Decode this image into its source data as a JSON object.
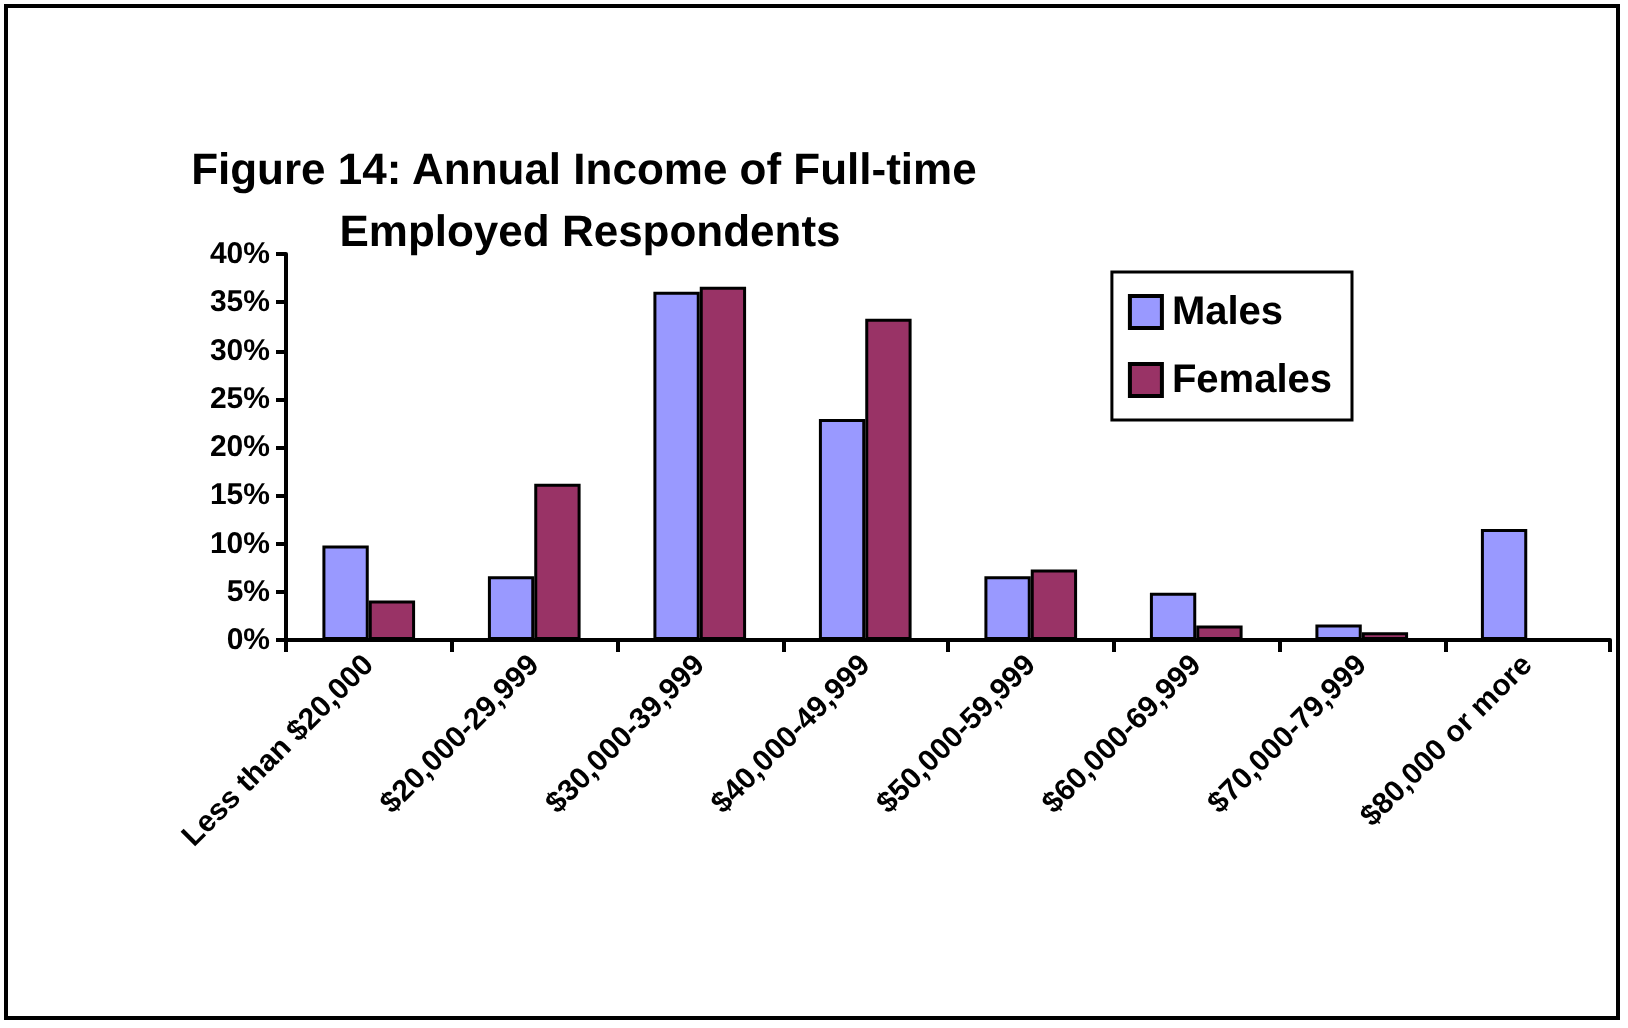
{
  "chart_data": {
    "type": "bar",
    "title": "Figure 14: Annual Income of Full-time Employed Respondents",
    "categories": [
      "Less than $20,000",
      "$20,000-29,999",
      "$30,000-39,999",
      "$40,000-49,999",
      "$50,000-59,999",
      "$60,000-69,999",
      "$70,000-79,999",
      "$80,000 or more"
    ],
    "series": [
      {
        "name": "Males",
        "color": "#9999ff",
        "values": [
          9.8,
          6.6,
          36.1,
          22.9,
          6.6,
          4.9,
          1.6,
          11.5
        ]
      },
      {
        "name": "Females",
        "color": "#993366",
        "values": [
          4.1,
          16.2,
          36.6,
          33.3,
          7.3,
          1.5,
          0.8,
          null
        ]
      }
    ],
    "ylim": [
      0,
      40
    ],
    "yticks": [
      {
        "value": 0,
        "label": "0%"
      },
      {
        "value": 5,
        "label": "5%"
      },
      {
        "value": 10,
        "label": "10%"
      },
      {
        "value": 15,
        "label": "15%"
      },
      {
        "value": 20,
        "label": "20%"
      },
      {
        "value": 25,
        "label": "25%"
      },
      {
        "value": 30,
        "label": "30%"
      },
      {
        "value": 35,
        "label": "35%"
      },
      {
        "value": 40,
        "label": "40%"
      }
    ],
    "grid": false,
    "legend": "top right"
  }
}
